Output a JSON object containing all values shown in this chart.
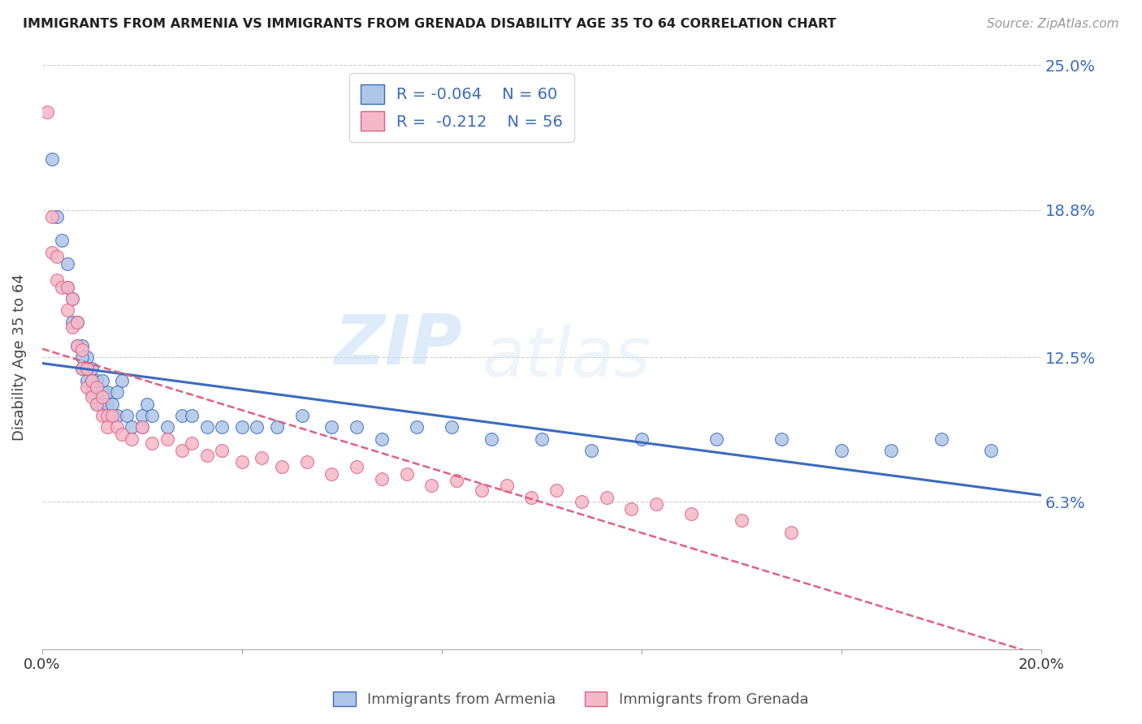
{
  "title": "IMMIGRANTS FROM ARMENIA VS IMMIGRANTS FROM GRENADA DISABILITY AGE 35 TO 64 CORRELATION CHART",
  "source": "Source: ZipAtlas.com",
  "ylabel": "Disability Age 35 to 64",
  "xlim": [
    0.0,
    0.2
  ],
  "ylim": [
    0.0,
    0.25
  ],
  "ytick_labels": [
    "6.3%",
    "12.5%",
    "18.8%",
    "25.0%"
  ],
  "ytick_values": [
    0.063,
    0.125,
    0.188,
    0.25
  ],
  "legend_r1": "R = -0.064",
  "legend_n1": "N = 60",
  "legend_r2": "R =  -0.212",
  "legend_n2": "N = 56",
  "color_armenia": "#aec6e8",
  "color_grenada": "#f5b8c8",
  "color_line_armenia": "#3a6bbf",
  "color_line_grenada": "#e06080",
  "watermark_zip": "ZIP",
  "watermark_atlas": "atlas",
  "armenia_scatter_x": [
    0.002,
    0.003,
    0.004,
    0.005,
    0.005,
    0.006,
    0.006,
    0.007,
    0.007,
    0.008,
    0.008,
    0.009,
    0.009,
    0.01,
    0.01,
    0.011,
    0.011,
    0.012,
    0.012,
    0.013,
    0.013,
    0.014,
    0.014,
    0.015,
    0.016,
    0.017,
    0.018,
    0.02,
    0.021,
    0.022,
    0.025,
    0.028,
    0.03,
    0.033,
    0.036,
    0.04,
    0.043,
    0.047,
    0.052,
    0.058,
    0.063,
    0.068,
    0.075,
    0.082,
    0.09,
    0.1,
    0.11,
    0.12,
    0.135,
    0.148,
    0.16,
    0.17,
    0.18,
    0.19,
    0.008,
    0.009,
    0.01,
    0.012,
    0.015,
    0.02
  ],
  "armenia_scatter_y": [
    0.21,
    0.185,
    0.175,
    0.165,
    0.155,
    0.15,
    0.14,
    0.14,
    0.13,
    0.13,
    0.12,
    0.125,
    0.115,
    0.12,
    0.11,
    0.115,
    0.105,
    0.11,
    0.105,
    0.105,
    0.11,
    0.1,
    0.105,
    0.1,
    0.115,
    0.1,
    0.095,
    0.1,
    0.105,
    0.1,
    0.095,
    0.1,
    0.1,
    0.095,
    0.095,
    0.095,
    0.095,
    0.095,
    0.1,
    0.095,
    0.095,
    0.09,
    0.095,
    0.095,
    0.09,
    0.09,
    0.085,
    0.09,
    0.09,
    0.09,
    0.085,
    0.085,
    0.09,
    0.085,
    0.125,
    0.12,
    0.115,
    0.115,
    0.11,
    0.095
  ],
  "grenada_scatter_x": [
    0.001,
    0.002,
    0.002,
    0.003,
    0.003,
    0.004,
    0.005,
    0.005,
    0.006,
    0.006,
    0.007,
    0.007,
    0.008,
    0.008,
    0.009,
    0.009,
    0.01,
    0.01,
    0.011,
    0.011,
    0.012,
    0.012,
    0.013,
    0.013,
    0.014,
    0.015,
    0.016,
    0.018,
    0.02,
    0.022,
    0.025,
    0.028,
    0.03,
    0.033,
    0.036,
    0.04,
    0.044,
    0.048,
    0.053,
    0.058,
    0.063,
    0.068,
    0.073,
    0.078,
    0.083,
    0.088,
    0.093,
    0.098,
    0.103,
    0.108,
    0.113,
    0.118,
    0.123,
    0.13,
    0.14,
    0.15
  ],
  "grenada_scatter_y": [
    0.23,
    0.185,
    0.17,
    0.168,
    0.158,
    0.155,
    0.155,
    0.145,
    0.15,
    0.138,
    0.14,
    0.13,
    0.128,
    0.12,
    0.12,
    0.112,
    0.115,
    0.108,
    0.112,
    0.105,
    0.108,
    0.1,
    0.1,
    0.095,
    0.1,
    0.095,
    0.092,
    0.09,
    0.095,
    0.088,
    0.09,
    0.085,
    0.088,
    0.083,
    0.085,
    0.08,
    0.082,
    0.078,
    0.08,
    0.075,
    0.078,
    0.073,
    0.075,
    0.07,
    0.072,
    0.068,
    0.07,
    0.065,
    0.068,
    0.063,
    0.065,
    0.06,
    0.062,
    0.058,
    0.055,
    0.05
  ]
}
